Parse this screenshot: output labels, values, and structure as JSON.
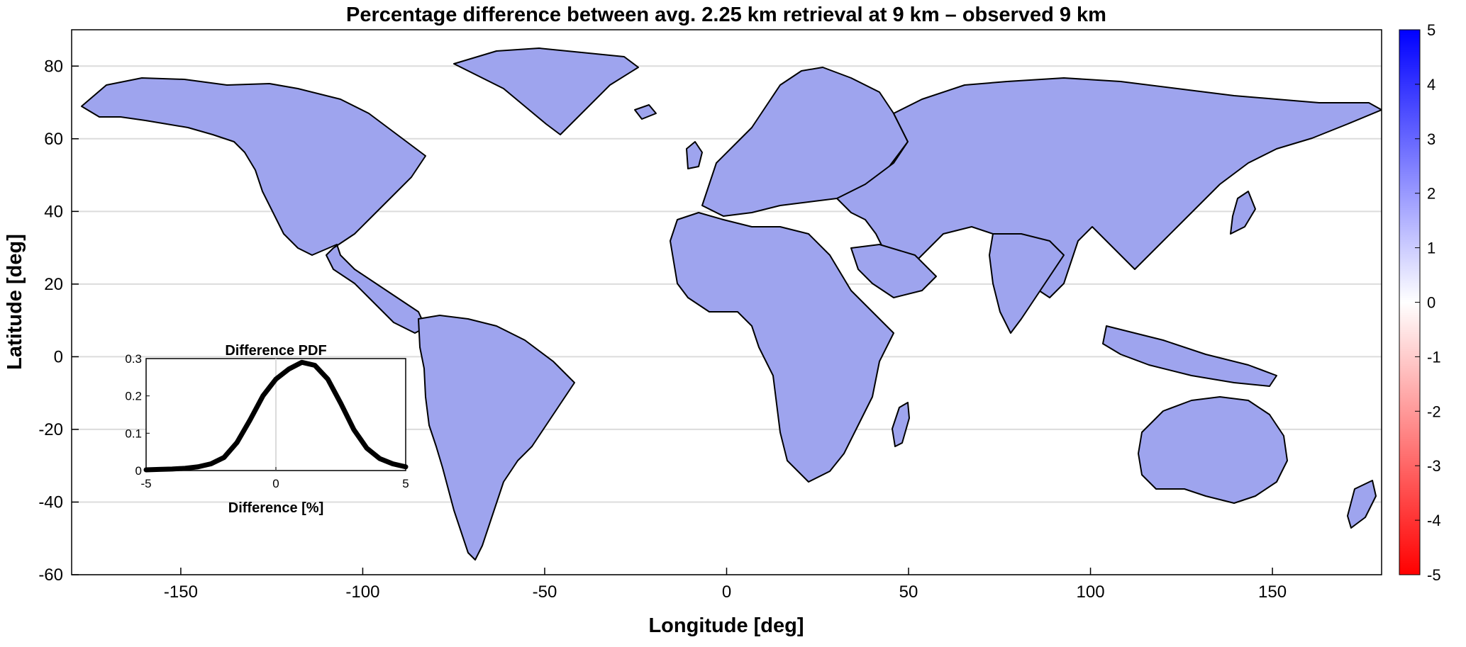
{
  "map": {
    "title": "Percentage difference between avg. 2.25 km retrieval at 9 km – observed 9 km",
    "xlabel": "Longitude [deg]",
    "ylabel": "Latitude [deg]",
    "xlim": [
      -180,
      180
    ],
    "ylim": [
      -60,
      90
    ],
    "xticks": [
      -150,
      -100,
      -50,
      0,
      50,
      100,
      150
    ],
    "yticks": [
      -60,
      -40,
      -20,
      0,
      20,
      40,
      60,
      80
    ],
    "grid": "horizontal",
    "colorbar": {
      "range": [
        -5,
        5
      ],
      "ticks": [
        5,
        4,
        3,
        2,
        1,
        0,
        -1,
        -2,
        -3,
        -4,
        -5
      ],
      "high_color": "#0000ff",
      "mid_color": "#ffffff",
      "low_color": "#ff0000"
    },
    "land_color": "#9ea4ee",
    "coast_color": "#000000"
  },
  "chart_data": {
    "type": "line",
    "title": "Difference PDF",
    "xlabel": "Difference [%]",
    "ylabel": "",
    "xlim": [
      -5,
      5
    ],
    "ylim": [
      0,
      0.3
    ],
    "xticks": [
      -5,
      0,
      5
    ],
    "yticks": [
      0,
      0.1,
      0.2,
      0.3
    ],
    "series": [
      {
        "x": [
          -5,
          -4.5,
          -4,
          -3.5,
          -3,
          -2.5,
          -2,
          -1.5,
          -1,
          -0.5,
          0,
          0.5,
          1,
          1.5,
          2,
          2.5,
          3,
          3.5,
          4,
          4.5,
          5
        ],
        "values": [
          0.002,
          0.003,
          0.004,
          0.006,
          0.01,
          0.018,
          0.035,
          0.075,
          0.135,
          0.2,
          0.245,
          0.272,
          0.29,
          0.282,
          0.245,
          0.18,
          0.11,
          0.06,
          0.032,
          0.018,
          0.01
        ]
      }
    ]
  }
}
